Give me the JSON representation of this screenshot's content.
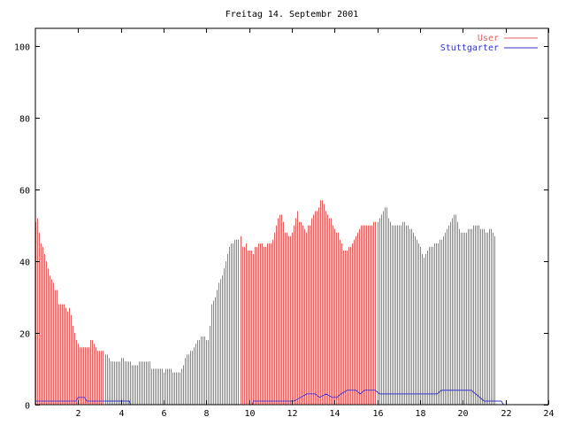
{
  "chart_data": {
    "type": "bar",
    "title": "Freitag 14. Septembr 2001",
    "xlabel": "",
    "ylabel": "",
    "xlim": [
      0,
      24
    ],
    "ylim": [
      0,
      105
    ],
    "x_ticks": [
      "2",
      "4",
      "6",
      "8",
      "10",
      "12",
      "14",
      "16",
      "18",
      "20",
      "22",
      "24"
    ],
    "y_ticks": [
      "0",
      "20",
      "40",
      "60",
      "80",
      "100"
    ],
    "grid": false,
    "legend_position": "top-right",
    "sample_interval_hours": 0.0833,
    "series": [
      {
        "name": "User",
        "style": "impulses",
        "color": "#e06060",
        "values": [
          51,
          52,
          48,
          45,
          44,
          42,
          40,
          38,
          36,
          35,
          34,
          32,
          32,
          28,
          28,
          28,
          28,
          27,
          26,
          27,
          25,
          22,
          20,
          18,
          17,
          16,
          16,
          16,
          16,
          16,
          16,
          18,
          18,
          17,
          16,
          15,
          15,
          15,
          15,
          14,
          14,
          13,
          12,
          12,
          12,
          12,
          12,
          12,
          13,
          13,
          12,
          12,
          12,
          12,
          11,
          11,
          11,
          11,
          12,
          12,
          12,
          12,
          12,
          12,
          12,
          10,
          10,
          10,
          10,
          10,
          10,
          10,
          9,
          10,
          10,
          10,
          10,
          9,
          9,
          9,
          9,
          9,
          10,
          11,
          13,
          14,
          14,
          15,
          15,
          16,
          17,
          18,
          18,
          19,
          19,
          19,
          18,
          18,
          22,
          28,
          29,
          30,
          32,
          34,
          35,
          36,
          38,
          40,
          42,
          44,
          45,
          45,
          46,
          46,
          46,
          47,
          44,
          44,
          45,
          43,
          43,
          43,
          42,
          44,
          44,
          45,
          45,
          45,
          44,
          44,
          45,
          45,
          45,
          46,
          48,
          50,
          52,
          53,
          53,
          51,
          48,
          48,
          47,
          47,
          48,
          50,
          52,
          54,
          51,
          51,
          50,
          49,
          48,
          50,
          50,
          52,
          53,
          54,
          54,
          55,
          57,
          57,
          56,
          54,
          53,
          52,
          52,
          50,
          49,
          48,
          48,
          46,
          45,
          43,
          43,
          43,
          44,
          44,
          45,
          46,
          47,
          48,
          49,
          50,
          50,
          50,
          50,
          50,
          50,
          50,
          51,
          51,
          51,
          52,
          53,
          54,
          55,
          55,
          52,
          51,
          50,
          50,
          50,
          50,
          50,
          50,
          51,
          51,
          50,
          50,
          49,
          49,
          48,
          47,
          46,
          45,
          44,
          42,
          41,
          42,
          43,
          44,
          44,
          44,
          45,
          45,
          45,
          46,
          46,
          47,
          48,
          49,
          50,
          51,
          52,
          53,
          53,
          51,
          49,
          48,
          48,
          48,
          48,
          49,
          49,
          49,
          50,
          50,
          50,
          50,
          49,
          49,
          49,
          48,
          48,
          49,
          49,
          48,
          47
        ]
      },
      {
        "name": "Stuttgarter",
        "style": "line",
        "color": "#3333cc",
        "points": [
          [
            0,
            1
          ],
          [
            1.9,
            1
          ],
          [
            2.0,
            2
          ],
          [
            2.3,
            2
          ],
          [
            2.4,
            1
          ],
          [
            4.4,
            1
          ],
          [
            4.45,
            0
          ],
          [
            10.15,
            0
          ],
          [
            10.2,
            1
          ],
          [
            12.1,
            1
          ],
          [
            12.4,
            2
          ],
          [
            12.7,
            3
          ],
          [
            13.1,
            3
          ],
          [
            13.3,
            2
          ],
          [
            13.6,
            3
          ],
          [
            13.9,
            2
          ],
          [
            14.1,
            2
          ],
          [
            14.3,
            3
          ],
          [
            14.6,
            4
          ],
          [
            15.0,
            4
          ],
          [
            15.2,
            3
          ],
          [
            15.4,
            4
          ],
          [
            15.9,
            4
          ],
          [
            16.1,
            3
          ],
          [
            18.8,
            3
          ],
          [
            19.0,
            4
          ],
          [
            20.4,
            4
          ],
          [
            20.6,
            3
          ],
          [
            20.8,
            2
          ],
          [
            21.0,
            1
          ],
          [
            21.8,
            1
          ],
          [
            21.9,
            0
          ],
          [
            24,
            0
          ]
        ]
      }
    ]
  }
}
